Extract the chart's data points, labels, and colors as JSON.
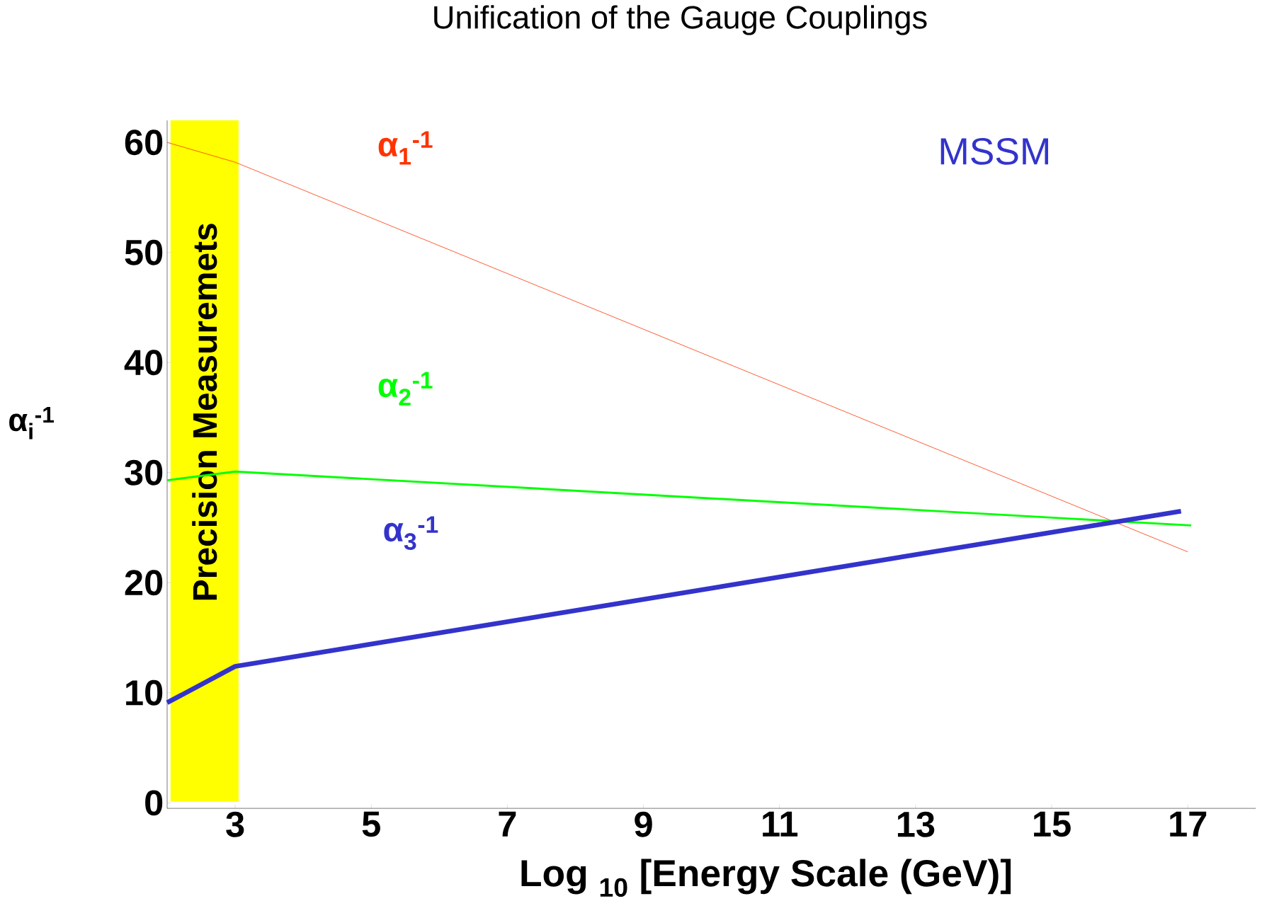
{
  "chart_data": {
    "type": "line",
    "title": "Unification of the Gauge Couplings",
    "xlabel": "Log $_{10}$ [Energy Scale (GeV)]",
    "ylabel": "α$_{i}$$^{-1}$",
    "x": [
      2,
      3,
      17
    ],
    "series": [
      {
        "name": "α$_{1}$$^{-1}$",
        "color": "#ff3300",
        "values": [
          60,
          58.2,
          22.8
        ]
      },
      {
        "name": "α$_{2}$$^{-1}$",
        "color": "#00ff00",
        "x": [
          2,
          3,
          17.05
        ],
        "values": [
          29.3,
          30.1,
          25.2
        ]
      },
      {
        "name": "α$_{3}$$^{-1}$",
        "color": "#3333cc",
        "x": [
          2,
          3,
          16.9
        ],
        "values": [
          9.1,
          12.4,
          26.5
        ]
      }
    ],
    "xlim": [
      2,
      18
    ],
    "ylim": [
      -0.5,
      62
    ],
    "xticks": [
      3,
      5,
      7,
      9,
      11,
      13,
      15,
      17
    ],
    "yticks": [
      0,
      10,
      20,
      30,
      40,
      50,
      60
    ],
    "bands": [
      {
        "axis": "x",
        "from": 2.05,
        "to": 3.05,
        "label": "Precision Measuremets",
        "color": "#ffff00"
      }
    ],
    "annotations": [
      "MSSM"
    ]
  }
}
